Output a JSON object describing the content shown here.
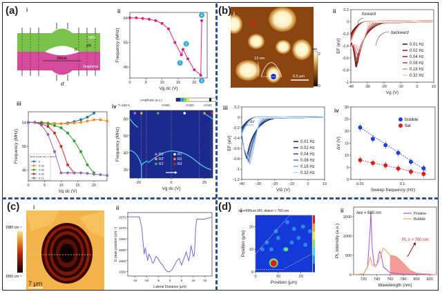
{
  "panels": {
    "a": {
      "label": "(a)",
      "i": {
        "sub": "i",
        "top_layer": "hBN",
        "bottom_layer": "Graphene",
        "rho_label": "ρ",
        "sigma_h_label": "σh",
        "radius_label": "2Rbub",
        "sigma_label": "σ"
      },
      "ii": {
        "sub": "ii"
      },
      "iii": {
        "sub": "iii"
      },
      "iv": {
        "sub": "iv",
        "amp_label": "Amplitude (a.u.)",
        "temp": "T=150 K",
        "amp_ticks": [
          "0.000",
          "0.023",
          "0.042"
        ],
        "legend": [
          "R3'",
          "R1",
          "R2'",
          "R2",
          "R1'",
          "R3"
        ]
      }
    },
    "b": {
      "label": "(b)",
      "i": {
        "sub": "i",
        "height_label": "13 nm",
        "scale_label": "0.5 μm",
        "cbar_unit": "nm",
        "cbar_max": "20",
        "cbar_min": "0"
      },
      "ii": {
        "sub": "ii",
        "forward": "forward",
        "backward": "backward"
      },
      "iii": {
        "sub": "iii",
        "dv_label": "ΔV"
      },
      "iv": {
        "sub": "iv"
      }
    },
    "c": {
      "label": "(c)",
      "i": {
        "sub": "i",
        "cbar_max": "1580 cm⁻¹",
        "cbar_min": "1550 cm⁻¹",
        "scale_label": "7 μm"
      },
      "ii": {
        "sub": "ii"
      }
    },
    "d": {
      "label": "(d)",
      "i": {
        "sub": "i",
        "title": "λex=695nm   λPL detect > 760 nm"
      },
      "ii": {
        "sub": "ii",
        "title": "λex = 680 nm",
        "annotation": "PL λ > 760 nm"
      }
    }
  },
  "chart_data": [
    {
      "id": "a-ii",
      "type": "line",
      "xlabel": "Vg dc (V)",
      "ylabel": "Frequency (MHz)",
      "xlim": [
        0,
        24
      ],
      "ylim": [
        42,
        66
      ],
      "xticks": [
        0,
        5,
        10,
        15,
        20
      ],
      "yticks": [
        46,
        55,
        64
      ],
      "series": [
        {
          "name": "frequency",
          "color": "#e0207a",
          "x": [
            0,
            2,
            4,
            6,
            8,
            10,
            12,
            14,
            16,
            16.5,
            18,
            20,
            22,
            22.3
          ],
          "y": [
            64,
            64,
            63.8,
            63.5,
            63,
            62,
            60,
            55,
            50.5,
            52.5,
            49,
            45,
            43,
            63
          ]
        }
      ],
      "markers": [
        {
          "label": "1",
          "x": 16,
          "y": 47.5
        },
        {
          "label": "2",
          "x": 17.5,
          "y": 54.5
        },
        {
          "label": "3",
          "x": 22.3,
          "y": 41
        },
        {
          "label": "4",
          "x": 22.3,
          "y": 65
        }
      ]
    },
    {
      "id": "a-iii",
      "type": "line",
      "xlabel": "Vg dc (V)",
      "ylabel": "Frequency (MHz)",
      "xlim": [
        0,
        24
      ],
      "ylim": [
        42,
        68
      ],
      "xticks": [
        0,
        5,
        10,
        15,
        20
      ],
      "yticks": [
        46,
        55,
        64
      ],
      "legend_title": "Rbub growth rate, m (μm/V)",
      "series": [
        {
          "name": "0",
          "color": "#1f77b4",
          "x": [
            0,
            2,
            4,
            6,
            8,
            10,
            12,
            14,
            16,
            18,
            20
          ],
          "y": [
            64,
            64,
            63.8,
            63.6,
            63.5,
            63.5,
            63.8,
            64.3,
            65,
            66,
            67.5
          ]
        },
        {
          "name": "0.03",
          "color": "#ff8c1a",
          "x": [
            0,
            2,
            4,
            6,
            8,
            10,
            12,
            14,
            16,
            18,
            20,
            22,
            24
          ],
          "y": [
            64,
            64,
            64,
            63.8,
            63.6,
            63.5,
            63.5,
            63.8,
            64,
            64.5,
            65,
            65,
            64.5
          ]
        },
        {
          "name": "0.06",
          "color": "#2ca02c",
          "x": [
            0,
            2,
            4,
            6,
            8,
            10,
            12,
            14,
            16,
            18,
            20
          ],
          "y": [
            64,
            64,
            64,
            63.5,
            62.8,
            62,
            60,
            57,
            53,
            48,
            45
          ]
        },
        {
          "name": "0.09",
          "color": "#d62728",
          "x": [
            0,
            2,
            4,
            6,
            8,
            10,
            12,
            14
          ],
          "y": [
            64,
            64,
            63.5,
            62.5,
            60,
            55,
            48,
            45
          ]
        },
        {
          "name": "0.12",
          "color": "#9467bd",
          "x": [
            0,
            2,
            4,
            6,
            8,
            10,
            12,
            14,
            16,
            18,
            20,
            22,
            24
          ],
          "y": [
            64,
            64,
            63,
            59.5,
            53,
            45,
            45,
            45,
            45,
            44.8,
            44.5,
            44.3,
            44
          ]
        }
      ]
    },
    {
      "id": "a-iv",
      "type": "heatmap",
      "xlabel": "Vg dc (V)",
      "ylabel": "Frequency (MHz)",
      "xlim": [
        -25,
        25
      ],
      "ylim": [
        10,
        90
      ],
      "xticks": [
        -20,
        0,
        20
      ],
      "yticks": [
        20,
        40,
        60,
        80
      ]
    },
    {
      "id": "b-ii",
      "type": "line",
      "xlabel": "Vg (V)",
      "ylabel": "EF (eV)",
      "xlim": [
        -40,
        10
      ],
      "ylim": [
        -1.0,
        0.2
      ],
      "xticks": [
        -40,
        -30,
        -20,
        -10,
        0,
        10
      ],
      "yticks": [
        0.2,
        0,
        -0.2,
        -0.4,
        -0.6,
        -0.8,
        -1.0
      ],
      "series": [
        {
          "name": "0.01 Hz",
          "color": "#4a0a0a"
        },
        {
          "name": "0.02 Hz",
          "color": "#7a1c12"
        },
        {
          "name": "0.04 Hz",
          "color": "#a3191c"
        },
        {
          "name": "0.08 Hz",
          "color": "#cc3b3b"
        },
        {
          "name": "0.16 Hz",
          "color": "#e98a8a"
        },
        {
          "name": "0.32 Hz",
          "color": "#f4c8b8"
        }
      ]
    },
    {
      "id": "b-iii",
      "type": "line",
      "xlabel": "VG (V)",
      "ylabel": "EF (eV)",
      "xlim": [
        -40,
        10
      ],
      "ylim": [
        -1.2,
        0.2
      ],
      "xticks": [
        -40,
        -30,
        -20,
        -10,
        0,
        10
      ],
      "yticks": [
        0.2,
        0,
        -0.2,
        -0.4,
        -0.6,
        -0.8,
        -1.0,
        -1.2
      ],
      "series": [
        {
          "name": "0.01 Hz",
          "color": "#0d1b4f"
        },
        {
          "name": "0.02 Hz",
          "color": "#1b2f7a"
        },
        {
          "name": "0.04 Hz",
          "color": "#2e4a9e"
        },
        {
          "name": "0.08 Hz",
          "color": "#4f74c4"
        },
        {
          "name": "0.16 Hz",
          "color": "#7fb2e0"
        },
        {
          "name": "0.32 Hz",
          "color": "#b8def2"
        }
      ]
    },
    {
      "id": "b-iv",
      "type": "scatter",
      "xlabel": "Sweep frequency (Hz)",
      "ylabel": "ΔV (V)",
      "xscale": "log",
      "xlim": [
        0.006,
        0.6
      ],
      "ylim": [
        0,
        30
      ],
      "xticks": [
        "0.01",
        "0.1"
      ],
      "yticks": [
        0,
        5,
        10,
        15,
        20,
        25,
        30
      ],
      "series": [
        {
          "name": "bubble",
          "color": "#1f3fd6",
          "x": [
            0.01,
            0.02,
            0.04,
            0.08,
            0.16,
            0.32
          ],
          "y": [
            21.5,
            16.8,
            14.2,
            11,
            7.3,
            4.6
          ]
        },
        {
          "name": "flat",
          "color": "#d61f1f",
          "x": [
            0.01,
            0.02,
            0.04,
            0.08,
            0.16,
            0.32
          ],
          "y": [
            8,
            6.8,
            5.8,
            4.5,
            3.2,
            2.3
          ]
        }
      ]
    },
    {
      "id": "c-ii",
      "type": "line",
      "xlabel": "Lateral Distance (μm)",
      "ylabel": "G peak position (cm⁻¹)",
      "xlim": [
        -18,
        18
      ],
      "ylim": [
        1548,
        1577
      ],
      "xticks": [
        -15,
        -10,
        -5,
        0,
        5,
        10,
        15
      ],
      "yticks": [
        1550,
        1555,
        1560,
        1565,
        1570,
        1575
      ],
      "series": [
        {
          "name": "G peak",
          "color": "#6a6ae0",
          "x": [
            -18,
            -15,
            -13,
            -12,
            -11,
            -10.5,
            -10,
            -9.5,
            -9,
            -8,
            -7.5,
            -7,
            -6,
            -5,
            -4,
            -3,
            -2,
            -1,
            0,
            1,
            2,
            3,
            4,
            5,
            6,
            7,
            8,
            8.5,
            9,
            10,
            10.5,
            11,
            11.5,
            12,
            13,
            15,
            18
          ],
          "y": [
            1575,
            1575,
            1575,
            1570,
            1558,
            1561,
            1558,
            1555,
            1558,
            1556,
            1554,
            1554,
            1557,
            1556,
            1554,
            1553,
            1551,
            1550,
            1550,
            1551,
            1553,
            1555,
            1556,
            1553,
            1556,
            1559,
            1555,
            1557,
            1562,
            1557,
            1558,
            1570,
            1574,
            1574,
            1574,
            1574,
            1575
          ]
        }
      ]
    },
    {
      "id": "d-i",
      "type": "heatmap",
      "xlabel": "Position (μm)",
      "ylabel": "Position (μm)",
      "xlim": [
        0,
        25
      ],
      "ylim": [
        0,
        25
      ],
      "xticks": [
        0,
        10,
        20
      ],
      "yticks": [
        0,
        10,
        20
      ]
    },
    {
      "id": "d-ii",
      "type": "line",
      "xlabel": "Wavelength (nm)",
      "ylabel": "PL intensity (a.u.)",
      "xlim": [
        705,
        830
      ],
      "ylim": [
        0,
        1750
      ],
      "xticks": [
        720,
        740,
        760,
        780,
        800,
        820
      ],
      "yticks": [
        0,
        500,
        1000,
        1500
      ],
      "series": [
        {
          "name": "Pristine",
          "color": "#a64fd6",
          "x": [
            705,
            720,
            726,
            730,
            731,
            733,
            736,
            740,
            744,
            746,
            750,
            760,
            780,
            830
          ],
          "y": [
            0,
            20,
            200,
            1200,
            1620,
            700,
            250,
            250,
            600,
            550,
            200,
            50,
            10,
            0
          ]
        },
        {
          "name": "Bubble",
          "color": "#f0a060",
          "x": [
            705,
            720,
            726,
            730,
            733,
            738,
            742,
            746,
            750,
            755,
            760,
            765,
            770,
            780,
            790,
            800,
            830
          ],
          "y": [
            0,
            20,
            200,
            450,
            250,
            200,
            320,
            500,
            690,
            600,
            500,
            490,
            460,
            300,
            120,
            40,
            0
          ]
        }
      ]
    }
  ]
}
